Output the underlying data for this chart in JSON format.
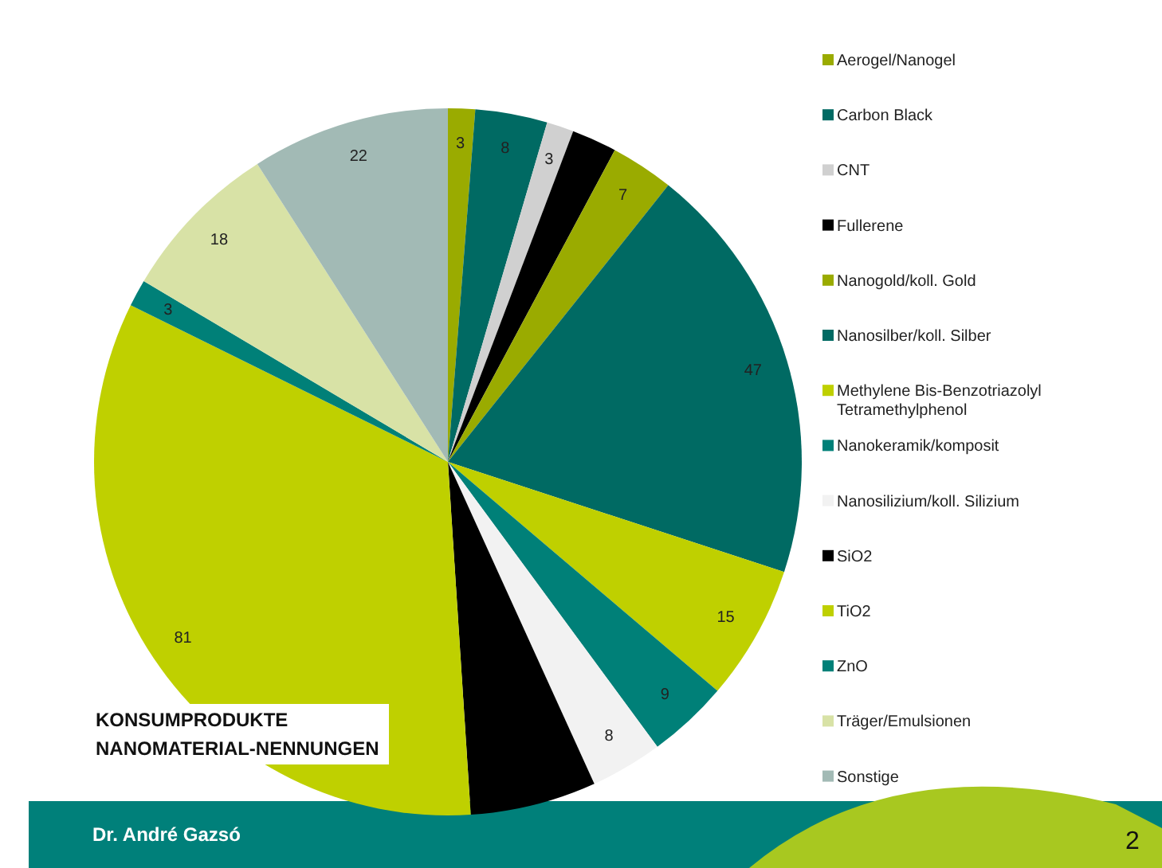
{
  "chart_data": {
    "type": "pie",
    "title": "KONSUMPRODUKTE NANOMATERIAL-NENNUNGEN",
    "categories": [
      "Aerogel/Nanogel",
      "Carbon Black",
      "CNT",
      "Fullerene",
      "Nanogold/koll. Gold",
      "Nanosilber/koll. Silber",
      "Methylene Bis-Benzotriazolyl Tetramethylphenol",
      "Nanokeramik/komposit",
      "Nanosilizium/koll. Silizium",
      "SiO2",
      "TiO2",
      "ZnO",
      "Träger/Emulsionen",
      "Sonstige"
    ],
    "values": [
      3,
      8,
      3,
      5,
      7,
      47,
      15,
      9,
      8,
      14,
      81,
      3,
      18,
      22
    ],
    "value_labels": [
      "3",
      "8",
      "3",
      null,
      "7",
      "47",
      "15",
      "9",
      "8",
      null,
      "81",
      "3",
      "18",
      "22"
    ],
    "colors": [
      "#9aab00",
      "#006a63",
      "#d0d0d0",
      "#000000",
      "#9aab00",
      "#006a63",
      "#bfd000",
      "#008078",
      "#f2f2f2",
      "#000000",
      "#bfd000",
      "#008078",
      "#d8e2a6",
      "#a2bab5"
    ],
    "legend": "right",
    "annotations": [
      "Dr. André Gazsó",
      "2"
    ]
  }
}
